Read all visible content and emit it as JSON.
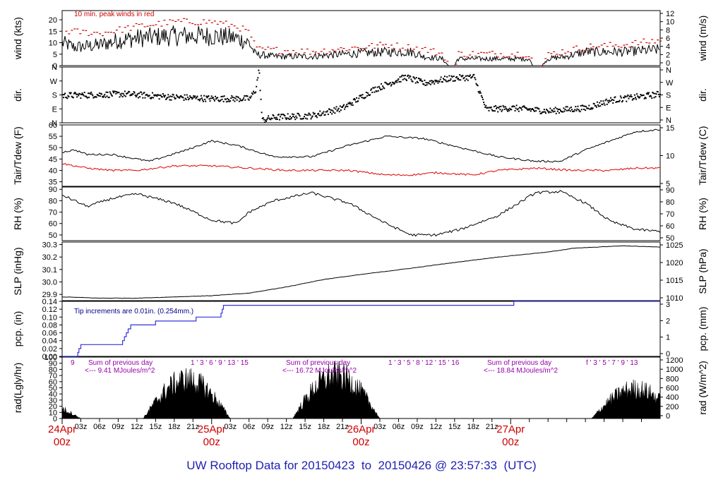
{
  "page_title": "UW Rooftop Data for 20150423  to  20150426 @ 23:57:33  (UTC)",
  "colors": {
    "axis": "#000000",
    "trace": "#000000",
    "peak": "#cc0000",
    "dewpoint": "#e00000",
    "precip": "#3333dd",
    "note_red": "#cc0000",
    "note_blue": "#00008b",
    "rad_label": "#9900aa",
    "date_red": "#cc0000",
    "title_blue": "#1f1fb4"
  },
  "chart_data": {
    "type": "line",
    "time_axis": {
      "range": [
        "2015-04-24T00:00Z",
        "2015-04-27T00:00Z"
      ],
      "hour_ticks": [
        "03z",
        "06z",
        "09z",
        "12z",
        "15z",
        "18z",
        "21z",
        "03z",
        "06z",
        "09z",
        "12z",
        "15z",
        "18z",
        "21z",
        "03z",
        "06z",
        "09z",
        "12z",
        "15z",
        "18z",
        "21z"
      ],
      "day_labels": [
        {
          "day": "24Apr",
          "hour": "00z"
        },
        {
          "day": "25Apr",
          "hour": "00z"
        },
        {
          "day": "26Apr",
          "hour": "00z"
        },
        {
          "day": "27Apr",
          "hour": "00z"
        }
      ]
    },
    "panels": [
      {
        "key": "wind",
        "left_label": "wind (kts)",
        "right_label": "wind (m/s)",
        "left_ticks": [
          "0",
          "5",
          "10",
          "15",
          "20"
        ],
        "left_range": [
          0,
          24
        ],
        "right_ticks": [
          "0",
          "2",
          "4",
          "6",
          "8",
          "10",
          "12"
        ],
        "note": "10 min. peak winds in red",
        "series": [
          {
            "role": "mean",
            "color": "#000000",
            "anchors": [
              [
                0,
                10
              ],
              [
                2,
                8
              ],
              [
                6,
                9
              ],
              [
                9,
                11
              ],
              [
                12,
                12
              ],
              [
                18,
                13
              ],
              [
                24,
                13
              ],
              [
                28,
                12
              ],
              [
                30,
                10
              ],
              [
                31,
                5
              ],
              [
                34,
                4
              ],
              [
                40,
                4
              ],
              [
                45,
                5
              ],
              [
                52,
                6
              ],
              [
                56,
                6
              ],
              [
                58,
                4
              ],
              [
                61,
                3
              ],
              [
                62,
                0
              ],
              [
                63,
                0
              ],
              [
                63.5,
                3
              ],
              [
                68,
                3
              ],
              [
                72,
                3
              ],
              [
                75,
                3
              ],
              [
                75.5,
                0
              ],
              [
                77,
                0
              ],
              [
                78,
                3
              ],
              [
                81,
                4
              ],
              [
                84,
                6
              ],
              [
                90,
                6
              ],
              [
                96,
                7
              ]
            ]
          },
          {
            "role": "peak",
            "color": "#cc0000",
            "anchors": [
              [
                0,
                15
              ],
              [
                6,
                14
              ],
              [
                12,
                17
              ],
              [
                18,
                19
              ],
              [
                24,
                19
              ],
              [
                28,
                17
              ],
              [
                30,
                14
              ],
              [
                31,
                7
              ],
              [
                40,
                6
              ],
              [
                52,
                9
              ],
              [
                58,
                7
              ],
              [
                61,
                5
              ],
              [
                62,
                0
              ],
              [
                63,
                0
              ],
              [
                63.5,
                5
              ],
              [
                75,
                5
              ],
              [
                75.5,
                0
              ],
              [
                77,
                0
              ],
              [
                78,
                5
              ],
              [
                84,
                8
              ],
              [
                90,
                9
              ],
              [
                96,
                11
              ]
            ]
          }
        ]
      },
      {
        "key": "dir",
        "left_label": "dir.",
        "right_label": "dir.",
        "left_ticks": [
          "N",
          "E",
          "S",
          "W",
          "N"
        ],
        "left_range": [
          0,
          360
        ],
        "right_ticks": [
          "N",
          "E",
          "S",
          "W",
          "N"
        ],
        "series": [
          {
            "role": "direction_deg",
            "anchors": [
              [
                0,
                180
              ],
              [
                10,
                190
              ],
              [
                18,
                170
              ],
              [
                24,
                160
              ],
              [
                30,
                160
              ],
              [
                31,
                220
              ],
              [
                31.5,
                350
              ],
              [
                32,
                20
              ],
              [
                34,
                40
              ],
              [
                40,
                50
              ],
              [
                45,
                100
              ],
              [
                50,
                220
              ],
              [
                55,
                300
              ],
              [
                58,
                260
              ],
              [
                62,
                290
              ],
              [
                66,
                300
              ],
              [
                68,
                90
              ],
              [
                72,
                100
              ],
              [
                78,
                80
              ],
              [
                84,
                100
              ],
              [
                88,
                150
              ],
              [
                96,
                190
              ]
            ]
          }
        ]
      },
      {
        "key": "temp",
        "left_label": "Tair/Tdew (F)",
        "right_label": "Tair/Tdew (C)",
        "left_ticks": [
          "35",
          "40",
          "45",
          "50",
          "55",
          "60"
        ],
        "left_range": [
          33,
          60
        ],
        "right_ticks": [
          "5",
          "10",
          "15"
        ],
        "series": [
          {
            "role": "air_temp_f",
            "color": "#000000",
            "anchors": [
              [
                0,
                48
              ],
              [
                2,
                49
              ],
              [
                4,
                47
              ],
              [
                8,
                47
              ],
              [
                14,
                44
              ],
              [
                20,
                49
              ],
              [
                24,
                53
              ],
              [
                28,
                51
              ],
              [
                34,
                46
              ],
              [
                40,
                46
              ],
              [
                46,
                51
              ],
              [
                52,
                55
              ],
              [
                58,
                54
              ],
              [
                64,
                50
              ],
              [
                70,
                46
              ],
              [
                76,
                44
              ],
              [
                80,
                44
              ],
              [
                84,
                49
              ],
              [
                88,
                53
              ],
              [
                92,
                57
              ],
              [
                96,
                58
              ]
            ]
          },
          {
            "role": "dew_point_f",
            "color": "#e00000",
            "anchors": [
              [
                0,
                43
              ],
              [
                4,
                41
              ],
              [
                8,
                40
              ],
              [
                12,
                40
              ],
              [
                18,
                42
              ],
              [
                24,
                42
              ],
              [
                30,
                41
              ],
              [
                36,
                40
              ],
              [
                40,
                40
              ],
              [
                46,
                40
              ],
              [
                52,
                38
              ],
              [
                56,
                38
              ],
              [
                60,
                39
              ],
              [
                66,
                38
              ],
              [
                70,
                40
              ],
              [
                76,
                41
              ],
              [
                82,
                40
              ],
              [
                88,
                40
              ],
              [
                92,
                41
              ],
              [
                96,
                41
              ]
            ]
          }
        ]
      },
      {
        "key": "rh",
        "left_label": "RH (%)",
        "right_label": "RH (%)",
        "left_ticks": [
          "50",
          "60",
          "70",
          "80",
          "90"
        ],
        "left_range": [
          45,
          92
        ],
        "right_ticks": [
          "50",
          "60",
          "70",
          "80",
          "90"
        ],
        "series": [
          {
            "role": "rh",
            "color": "#000000",
            "anchors": [
              [
                0,
                85
              ],
              [
                4,
                75
              ],
              [
                8,
                82
              ],
              [
                12,
                86
              ],
              [
                18,
                78
              ],
              [
                24,
                63
              ],
              [
                28,
                60
              ],
              [
                30,
                70
              ],
              [
                34,
                80
              ],
              [
                40,
                87
              ],
              [
                46,
                78
              ],
              [
                52,
                60
              ],
              [
                56,
                50
              ],
              [
                60,
                50
              ],
              [
                64,
                55
              ],
              [
                70,
                67
              ],
              [
                76,
                87
              ],
              [
                80,
                88
              ],
              [
                84,
                78
              ],
              [
                88,
                62
              ],
              [
                92,
                55
              ],
              [
                96,
                53
              ]
            ]
          }
        ]
      },
      {
        "key": "slp",
        "left_label": "SLP (inHg)",
        "right_label": "SLP (hPa)",
        "left_ticks": [
          "29.9",
          "30.0",
          "30.1",
          "30.2",
          "30.3"
        ],
        "left_range": [
          29.85,
          30.32
        ],
        "right_ticks": [
          "1010",
          "1015",
          "1020",
          "1025"
        ],
        "series": [
          {
            "role": "slp",
            "color": "#000000",
            "anchors": [
              [
                0,
                29.88
              ],
              [
                6,
                29.87
              ],
              [
                12,
                29.87
              ],
              [
                18,
                29.88
              ],
              [
                24,
                29.89
              ],
              [
                30,
                29.91
              ],
              [
                36,
                29.96
              ],
              [
                42,
                30.02
              ],
              [
                48,
                30.06
              ],
              [
                56,
                30.11
              ],
              [
                62,
                30.15
              ],
              [
                70,
                30.2
              ],
              [
                78,
                30.24
              ],
              [
                82,
                30.27
              ],
              [
                86,
                30.28
              ],
              [
                90,
                30.29
              ],
              [
                96,
                30.28
              ]
            ]
          }
        ]
      },
      {
        "key": "pcp",
        "left_label": "pcp. (in)",
        "right_label": "pcp. (mm)",
        "left_ticks": [
          "0.00",
          "0.02",
          "0.04",
          "0.06",
          "0.08",
          "0.10",
          "0.12",
          "0.14"
        ],
        "left_range": [
          0,
          0.14
        ],
        "right_ticks": [
          "0",
          "1",
          "2",
          "3"
        ],
        "note": "Tip increments are 0.01in. (0.254mm.)",
        "series": [
          {
            "role": "cumulative_precip_in",
            "color": "#3333dd",
            "steps": [
              [
                0,
                0
              ],
              [
                2.5,
                0.01
              ],
              [
                2.7,
                0.02
              ],
              [
                3,
                0.03
              ],
              [
                9.7,
                0.04
              ],
              [
                10,
                0.05
              ],
              [
                10.3,
                0.06
              ],
              [
                10.6,
                0.07
              ],
              [
                11,
                0.08
              ],
              [
                15,
                0.09
              ],
              [
                21.5,
                0.1
              ],
              [
                25.5,
                0.11
              ],
              [
                25.7,
                0.12
              ],
              [
                25.9,
                0.13
              ],
              [
                72.5,
                0.14
              ]
            ]
          }
        ]
      },
      {
        "key": "rad",
        "left_label": "rad(Lgly/hr)",
        "right_label": "rad (W/m^2)",
        "left_ticks": [
          "0",
          "10",
          "20",
          "30",
          "40",
          "50",
          "60",
          "70",
          "80",
          "90",
          "100"
        ],
        "left_range": [
          0,
          100
        ],
        "right_ticks": [
          "0",
          "200",
          "400",
          "600",
          "800",
          "1000",
          "1200"
        ],
        "daily_notes": [
          {
            "hours": [
              "9"
            ],
            "sum": "Sum of previous day",
            "value": "<--- 9.41 MJoules/m^2"
          },
          {
            "hours": [
              "1",
              "3",
              "6",
              "9",
              "13",
              "15"
            ],
            "sum": "Sum of previous day",
            "value": "<--- 16.72 MJoules/m^2"
          },
          {
            "hours": [
              "1",
              "3",
              "5",
              "8",
              "12",
              "15",
              "16"
            ],
            "sum": "Sum of previous day",
            "value": "<--- 18.84 MJoules/m^2"
          },
          {
            "hours": [
              "f",
              "3",
              "5",
              "7",
              "9",
              "13"
            ]
          }
        ],
        "daily_peaks": [
          35,
          85,
          95,
          65
        ]
      }
    ]
  }
}
